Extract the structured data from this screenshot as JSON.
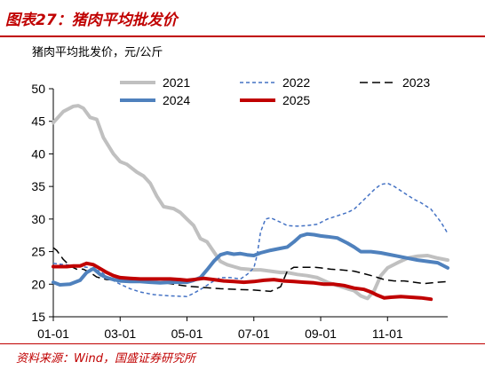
{
  "header": {
    "title": "图表27：猪肉平均批发价",
    "source": "资料来源：Wind，国盛证券研究所"
  },
  "chart_data": {
    "type": "line",
    "title": "猪肉平均批发价，元/公斤",
    "xlabel": "",
    "ylabel": "",
    "ylim": [
      15,
      50
    ],
    "yticks": [
      15,
      20,
      25,
      30,
      35,
      40,
      45,
      50
    ],
    "xlim": [
      1,
      12.8
    ],
    "xticks": [
      1,
      3,
      5,
      7,
      9,
      11
    ],
    "xtick_labels": [
      "01-01",
      "03-01",
      "05-01",
      "07-01",
      "09-01",
      "11-01"
    ],
    "grid": false,
    "legend_position": "top-right",
    "series": [
      {
        "name": "2021",
        "color": "#c0c0c0",
        "dash": "solid",
        "width": 4,
        "x": [
          1.0,
          1.3,
          1.6,
          1.75,
          1.9,
          2.1,
          2.3,
          2.5,
          2.8,
          3.0,
          3.2,
          3.5,
          3.7,
          3.9,
          4.1,
          4.3,
          4.6,
          4.8,
          5.0,
          5.2,
          5.4,
          5.6,
          5.8,
          6.0,
          6.2,
          6.4,
          6.6,
          6.8,
          7.0,
          7.2,
          7.5,
          7.8,
          8.0,
          8.3,
          8.6,
          8.9,
          9.2,
          9.5,
          9.8,
          10.0,
          10.2,
          10.4,
          10.6,
          10.8,
          11.0,
          11.3,
          11.6,
          11.9,
          12.2,
          12.5,
          12.8
        ],
        "y": [
          44.8,
          46.5,
          47.3,
          47.4,
          47.0,
          45.6,
          45.3,
          42.5,
          40.0,
          38.8,
          38.4,
          37.2,
          36.6,
          35.5,
          33.5,
          31.9,
          31.6,
          31.0,
          30.0,
          29.0,
          27.0,
          26.5,
          25.0,
          23.5,
          23.0,
          22.7,
          22.4,
          22.3,
          22.2,
          22.2,
          22.0,
          21.8,
          21.8,
          21.5,
          21.3,
          21.0,
          20.3,
          19.8,
          19.3,
          19.0,
          18.2,
          17.8,
          19.0,
          21.3,
          22.5,
          23.3,
          24.0,
          24.3,
          24.4,
          24.0,
          23.7
        ]
      },
      {
        "name": "2022",
        "color": "#4472c4",
        "dash": "4,3",
        "width": 1.5,
        "x": [
          1.0,
          1.5,
          2.0,
          2.4,
          2.7,
          3.0,
          3.3,
          3.6,
          4.0,
          4.5,
          5.0,
          5.2,
          5.5,
          5.8,
          6.0,
          6.3,
          6.6,
          6.8,
          7.0,
          7.1,
          7.2,
          7.35,
          7.5,
          7.8,
          8.0,
          8.3,
          8.6,
          8.9,
          9.2,
          9.5,
          9.8,
          10.0,
          10.2,
          10.4,
          10.6,
          10.8,
          11.0,
          11.2,
          11.5,
          11.8,
          12.0,
          12.3,
          12.6,
          12.8
        ],
        "y": [
          23.2,
          22.9,
          22.6,
          22.0,
          20.8,
          20.0,
          19.3,
          18.8,
          18.4,
          18.2,
          18.1,
          18.6,
          19.5,
          20.5,
          21.0,
          21.0,
          20.8,
          21.5,
          22.5,
          24.5,
          28.0,
          30.0,
          30.2,
          29.5,
          29.0,
          28.9,
          29.0,
          29.2,
          30.0,
          30.5,
          31.0,
          31.5,
          32.5,
          33.5,
          34.5,
          35.3,
          35.5,
          35.0,
          34.0,
          33.0,
          32.5,
          31.5,
          29.5,
          27.8
        ]
      },
      {
        "name": "2023",
        "color": "#000000",
        "dash": "9,5",
        "width": 1.5,
        "x": [
          1.0,
          1.1,
          1.3,
          1.5,
          1.7,
          1.9,
          2.1,
          2.3,
          2.6,
          3.0,
          3.4,
          3.8,
          4.2,
          4.6,
          5.0,
          5.5,
          6.0,
          6.5,
          7.0,
          7.5,
          7.8,
          8.0,
          8.2,
          8.5,
          8.8,
          9.0,
          9.3,
          9.6,
          10.0,
          10.3,
          10.6,
          10.9,
          11.2,
          11.5,
          11.8,
          12.1,
          12.5,
          12.8
        ],
        "y": [
          25.6,
          25.2,
          23.8,
          22.8,
          22.3,
          22.3,
          21.8,
          21.1,
          20.7,
          20.6,
          20.5,
          20.4,
          20.3,
          20.0,
          19.7,
          19.5,
          19.3,
          19.2,
          19.1,
          18.9,
          19.6,
          22.0,
          22.6,
          22.6,
          22.6,
          22.5,
          22.3,
          22.2,
          22.0,
          21.6,
          21.2,
          20.7,
          20.5,
          20.5,
          20.3,
          20.1,
          20.3,
          20.4
        ]
      },
      {
        "name": "2024",
        "color": "#4f81bd",
        "dash": "solid",
        "width": 4,
        "x": [
          1.0,
          1.2,
          1.5,
          1.8,
          2.0,
          2.2,
          2.4,
          2.6,
          2.8,
          3.0,
          3.3,
          3.6,
          3.9,
          4.2,
          4.5,
          4.8,
          5.0,
          5.2,
          5.4,
          5.6,
          5.8,
          6.0,
          6.2,
          6.4,
          6.6,
          6.8,
          7.0,
          7.2,
          7.5,
          7.8,
          8.0,
          8.2,
          8.4,
          8.6,
          8.8,
          9.0,
          9.2,
          9.5,
          9.8,
          10.0,
          10.2,
          10.5,
          10.8,
          11.0,
          11.3,
          11.6,
          11.9,
          12.2,
          12.5,
          12.8
        ],
        "y": [
          20.3,
          19.9,
          20.0,
          20.6,
          21.8,
          22.4,
          21.5,
          21.0,
          20.7,
          20.5,
          20.4,
          20.4,
          20.3,
          20.2,
          20.3,
          20.3,
          20.3,
          20.6,
          21.0,
          22.2,
          23.5,
          24.5,
          24.8,
          24.6,
          24.7,
          24.5,
          24.4,
          24.8,
          25.2,
          25.5,
          25.7,
          26.5,
          27.4,
          27.7,
          27.6,
          27.4,
          27.3,
          27.1,
          26.3,
          25.7,
          25.0,
          25.0,
          24.8,
          24.6,
          24.3,
          24.0,
          23.7,
          23.5,
          23.3,
          22.5
        ]
      },
      {
        "name": "2025",
        "color": "#c00000",
        "dash": "solid",
        "width": 4,
        "x": [
          1.0,
          1.2,
          1.4,
          1.6,
          1.8,
          2.0,
          2.2,
          2.4,
          2.6,
          2.8,
          3.0,
          3.3,
          3.6,
          3.9,
          4.2,
          4.5,
          4.8,
          5.0,
          5.2,
          5.5,
          5.8,
          6.1,
          6.4,
          6.7,
          7.0,
          7.3,
          7.6,
          7.9,
          8.2,
          8.5,
          8.8,
          9.1,
          9.4,
          9.7,
          10.0,
          10.3,
          10.5,
          10.7,
          10.9,
          11.1,
          11.4,
          11.7,
          12.0,
          12.3
        ],
        "y": [
          22.7,
          22.7,
          22.7,
          22.8,
          22.8,
          23.2,
          23.0,
          22.4,
          21.8,
          21.3,
          21.0,
          20.9,
          20.8,
          20.8,
          20.8,
          20.8,
          20.7,
          20.6,
          20.7,
          20.9,
          20.7,
          20.5,
          20.4,
          20.3,
          20.4,
          20.6,
          20.7,
          20.5,
          20.4,
          20.3,
          20.2,
          20.0,
          20.0,
          19.8,
          19.4,
          19.2,
          18.8,
          18.3,
          17.9,
          18.0,
          18.1,
          18.0,
          17.9,
          17.7
        ]
      }
    ]
  }
}
